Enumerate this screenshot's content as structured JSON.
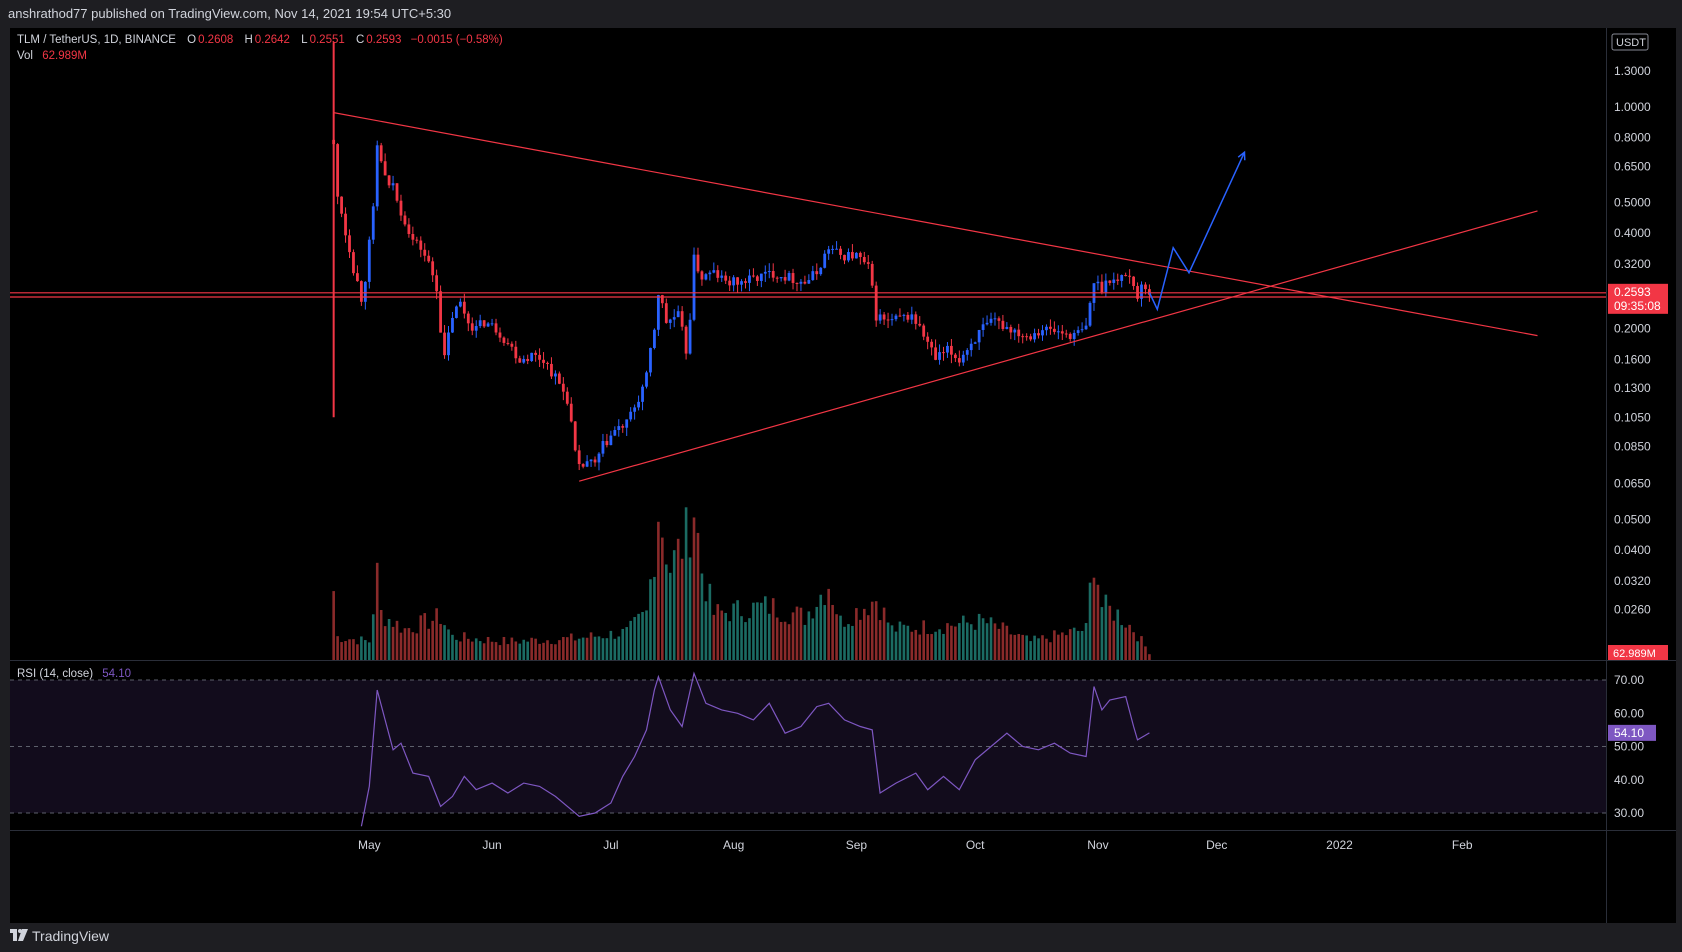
{
  "header": {
    "published": "anshrathod77 published on TradingView.com, Nov 14, 2021 19:54 UTC+5:30"
  },
  "legend": {
    "symbol": "TLM / TetherUS, 1D, BINANCE",
    "o_label": "O",
    "o": "0.2608",
    "h_label": "H",
    "h": "0.2642",
    "l_label": "L",
    "l": "0.2551",
    "c_label": "C",
    "c": "0.2593",
    "change": "−0.0015 (−0.58%)",
    "vol_label": "Vol",
    "vol": "62.989M",
    "rsi_label": "RSI (14, close)",
    "rsi": "54.10"
  },
  "footer": {
    "brand": "TradingView"
  },
  "colors": {
    "up": "#2962ff",
    "down": "#f23645",
    "vol_up": "#1b6b63",
    "vol_down": "#8a2a2a",
    "rsi": "#7e57c2",
    "trend": "#f23645",
    "projection": "#2962ff"
  },
  "chart_data": [
    {
      "type": "candlestick",
      "symbol": "TLM / TetherUS",
      "interval": "1D",
      "exchange": "BINANCE",
      "scale": "log",
      "currency": "USDT",
      "x_ticks": [
        "May",
        "Jun",
        "Jul",
        "Aug",
        "Sep",
        "Oct",
        "Nov",
        "Dec",
        "2022",
        "Feb"
      ],
      "y_ticks": [
        1.3,
        1.0,
        0.8,
        0.65,
        0.5,
        0.4,
        0.32,
        0.26,
        0.2,
        0.16,
        0.13,
        0.105,
        0.085,
        0.065,
        0.05,
        0.04,
        0.032,
        0.026
      ],
      "y_tick_labels": [
        "1.3000",
        "1.0000",
        "0.8000",
        "0.6500",
        "0.5000",
        "0.4000",
        "0.3200",
        "0.2600",
        "0.2000",
        "0.1600",
        "0.1300",
        "0.1050",
        "0.0850",
        "0.0650",
        "0.0500",
        "0.0400",
        "0.0320",
        "0.0260"
      ],
      "last_price": "0.2593",
      "countdown": "09:35:08",
      "currency_label": "USDT",
      "price_path": [
        {
          "d": "2021-04-22",
          "v": 0.75
        },
        {
          "d": "2021-04-23",
          "v": 0.52
        },
        {
          "d": "2021-04-24",
          "v": 0.47
        },
        {
          "d": "2021-04-25",
          "v": 0.4
        },
        {
          "d": "2021-04-26",
          "v": 0.36
        },
        {
          "d": "2021-04-27",
          "v": 0.31
        },
        {
          "d": "2021-04-28",
          "v": 0.28
        },
        {
          "d": "2021-04-29",
          "v": 0.25
        },
        {
          "d": "2021-04-30",
          "v": 0.29
        },
        {
          "d": "2021-05-01",
          "v": 0.37
        },
        {
          "d": "2021-05-02",
          "v": 0.47
        },
        {
          "d": "2021-05-03",
          "v": 0.75
        },
        {
          "d": "2021-05-04",
          "v": 0.68
        },
        {
          "d": "2021-05-05",
          "v": 0.6
        },
        {
          "d": "2021-05-06",
          "v": 0.55
        },
        {
          "d": "2021-05-07",
          "v": 0.58
        },
        {
          "d": "2021-05-08",
          "v": 0.5
        },
        {
          "d": "2021-05-10",
          "v": 0.44
        },
        {
          "d": "2021-05-12",
          "v": 0.38
        },
        {
          "d": "2021-05-14",
          "v": 0.36
        },
        {
          "d": "2021-05-16",
          "v": 0.32
        },
        {
          "d": "2021-05-18",
          "v": 0.27
        },
        {
          "d": "2021-05-19",
          "v": 0.2
        },
        {
          "d": "2021-05-20",
          "v": 0.16
        },
        {
          "d": "2021-05-22",
          "v": 0.22
        },
        {
          "d": "2021-05-24",
          "v": 0.24
        },
        {
          "d": "2021-05-26",
          "v": 0.21
        },
        {
          "d": "2021-05-28",
          "v": 0.2
        },
        {
          "d": "2021-05-30",
          "v": 0.21
        },
        {
          "d": "2021-06-02",
          "v": 0.2
        },
        {
          "d": "2021-06-05",
          "v": 0.18
        },
        {
          "d": "2021-06-08",
          "v": 0.16
        },
        {
          "d": "2021-06-11",
          "v": 0.165
        },
        {
          "d": "2021-06-14",
          "v": 0.16
        },
        {
          "d": "2021-06-17",
          "v": 0.14
        },
        {
          "d": "2021-06-20",
          "v": 0.12
        },
        {
          "d": "2021-06-22",
          "v": 0.08
        },
        {
          "d": "2021-06-23",
          "v": 0.072
        },
        {
          "d": "2021-06-25",
          "v": 0.076
        },
        {
          "d": "2021-06-27",
          "v": 0.074
        },
        {
          "d": "2021-06-29",
          "v": 0.085
        },
        {
          "d": "2021-07-02",
          "v": 0.095
        },
        {
          "d": "2021-07-05",
          "v": 0.1
        },
        {
          "d": "2021-07-08",
          "v": 0.12
        },
        {
          "d": "2021-07-10",
          "v": 0.14
        },
        {
          "d": "2021-07-12",
          "v": 0.2
        },
        {
          "d": "2021-07-13",
          "v": 0.26
        },
        {
          "d": "2021-07-15",
          "v": 0.21
        },
        {
          "d": "2021-07-18",
          "v": 0.22
        },
        {
          "d": "2021-07-20",
          "v": 0.17
        },
        {
          "d": "2021-07-21",
          "v": 0.22
        },
        {
          "d": "2021-07-22",
          "v": 0.33
        },
        {
          "d": "2021-07-24",
          "v": 0.29
        },
        {
          "d": "2021-07-27",
          "v": 0.3
        },
        {
          "d": "2021-07-30",
          "v": 0.28
        },
        {
          "d": "2021-08-03",
          "v": 0.28
        },
        {
          "d": "2021-08-07",
          "v": 0.29
        },
        {
          "d": "2021-08-11",
          "v": 0.3
        },
        {
          "d": "2021-08-15",
          "v": 0.29
        },
        {
          "d": "2021-08-19",
          "v": 0.28
        },
        {
          "d": "2021-08-22",
          "v": 0.3
        },
        {
          "d": "2021-08-25",
          "v": 0.36
        },
        {
          "d": "2021-08-28",
          "v": 0.34
        },
        {
          "d": "2021-09-01",
          "v": 0.34
        },
        {
          "d": "2021-09-04",
          "v": 0.31
        },
        {
          "d": "2021-09-06",
          "v": 0.22
        },
        {
          "d": "2021-09-09",
          "v": 0.21
        },
        {
          "d": "2021-09-12",
          "v": 0.215
        },
        {
          "d": "2021-09-15",
          "v": 0.22
        },
        {
          "d": "2021-09-18",
          "v": 0.19
        },
        {
          "d": "2021-09-21",
          "v": 0.16
        },
        {
          "d": "2021-09-24",
          "v": 0.17
        },
        {
          "d": "2021-09-27",
          "v": 0.16
        },
        {
          "d": "2021-09-30",
          "v": 0.18
        },
        {
          "d": "2021-10-03",
          "v": 0.2
        },
        {
          "d": "2021-10-06",
          "v": 0.21
        },
        {
          "d": "2021-10-10",
          "v": 0.2
        },
        {
          "d": "2021-10-14",
          "v": 0.19
        },
        {
          "d": "2021-10-18",
          "v": 0.2
        },
        {
          "d": "2021-10-22",
          "v": 0.195
        },
        {
          "d": "2021-10-26",
          "v": 0.19
        },
        {
          "d": "2021-10-29",
          "v": 0.2
        },
        {
          "d": "2021-10-31",
          "v": 0.28
        },
        {
          "d": "2021-11-02",
          "v": 0.27
        },
        {
          "d": "2021-11-04",
          "v": 0.29
        },
        {
          "d": "2021-11-06",
          "v": 0.28
        },
        {
          "d": "2021-11-08",
          "v": 0.3
        },
        {
          "d": "2021-11-10",
          "v": 0.28
        },
        {
          "d": "2021-11-11",
          "v": 0.25
        },
        {
          "d": "2021-11-12",
          "v": 0.27
        },
        {
          "d": "2021-11-14",
          "v": 0.2593
        }
      ],
      "annotations": {
        "upper_trendline": [
          {
            "d": "2021-04-22",
            "v": 0.96
          },
          {
            "d": "2022-02-20",
            "v": 0.19
          }
        ],
        "lower_trendline": [
          {
            "d": "2021-06-23",
            "v": 0.066
          },
          {
            "d": "2022-02-20",
            "v": 0.47
          }
        ],
        "horizontal_levels": [
          0.2593,
          0.2515
        ],
        "projection_path": [
          {
            "d": "2021-11-14",
            "v": 0.26
          },
          {
            "d": "2021-11-16",
            "v": 0.23
          },
          {
            "d": "2021-11-20",
            "v": 0.36
          },
          {
            "d": "2021-11-24",
            "v": 0.3
          },
          {
            "d": "2021-12-08",
            "v": 0.72
          }
        ]
      }
    },
    {
      "type": "bar",
      "series": "Volume",
      "last_value": "62.989M",
      "relative_volume_path": [
        {
          "d": "2021-04-22",
          "v": 0.45
        },
        {
          "d": "2021-04-23",
          "v": 0.15
        },
        {
          "d": "2021-05-01",
          "v": 0.12
        },
        {
          "d": "2021-05-03",
          "v": 0.55
        },
        {
          "d": "2021-05-04",
          "v": 0.3
        },
        {
          "d": "2021-05-10",
          "v": 0.2
        },
        {
          "d": "2021-05-19",
          "v": 0.28
        },
        {
          "d": "2021-05-22",
          "v": 0.15
        },
        {
          "d": "2021-06-05",
          "v": 0.12
        },
        {
          "d": "2021-06-22",
          "v": 0.14
        },
        {
          "d": "2021-07-05",
          "v": 0.18
        },
        {
          "d": "2021-07-10",
          "v": 0.3
        },
        {
          "d": "2021-07-12",
          "v": 0.72
        },
        {
          "d": "2021-07-13",
          "v": 0.99
        },
        {
          "d": "2021-07-16",
          "v": 0.6
        },
        {
          "d": "2021-07-20",
          "v": 0.8
        },
        {
          "d": "2021-07-22",
          "v": 1.0
        },
        {
          "d": "2021-07-24",
          "v": 0.58
        },
        {
          "d": "2021-07-27",
          "v": 0.3
        },
        {
          "d": "2021-08-10",
          "v": 0.35
        },
        {
          "d": "2021-08-19",
          "v": 0.28
        },
        {
          "d": "2021-08-25",
          "v": 0.5
        },
        {
          "d": "2021-08-28",
          "v": 0.25
        },
        {
          "d": "2021-09-06",
          "v": 0.4
        },
        {
          "d": "2021-09-10",
          "v": 0.2
        },
        {
          "d": "2021-09-21",
          "v": 0.22
        },
        {
          "d": "2021-10-03",
          "v": 0.25
        },
        {
          "d": "2021-10-15",
          "v": 0.12
        },
        {
          "d": "2021-10-29",
          "v": 0.2
        },
        {
          "d": "2021-10-31",
          "v": 0.7
        },
        {
          "d": "2021-11-02",
          "v": 0.35
        },
        {
          "d": "2021-11-06",
          "v": 0.3
        },
        {
          "d": "2021-11-10",
          "v": 0.2
        },
        {
          "d": "2021-11-14",
          "v": 0.05
        }
      ]
    },
    {
      "type": "line",
      "series": "RSI (14, close)",
      "y_ticks": [
        70,
        60,
        50,
        40,
        30
      ],
      "y_tick_labels": [
        "70.00",
        "60.00",
        "50.00",
        "40.00",
        "30.00"
      ],
      "bands": [
        70,
        50,
        30
      ],
      "last_value": "54.10",
      "path": [
        {
          "d": "2021-04-29",
          "v": 26
        },
        {
          "d": "2021-05-01",
          "v": 38
        },
        {
          "d": "2021-05-03",
          "v": 67
        },
        {
          "d": "2021-05-05",
          "v": 58
        },
        {
          "d": "2021-05-07",
          "v": 49
        },
        {
          "d": "2021-05-09",
          "v": 51
        },
        {
          "d": "2021-05-12",
          "v": 42
        },
        {
          "d": "2021-05-16",
          "v": 41
        },
        {
          "d": "2021-05-19",
          "v": 32
        },
        {
          "d": "2021-05-22",
          "v": 35
        },
        {
          "d": "2021-05-25",
          "v": 41
        },
        {
          "d": "2021-05-28",
          "v": 37
        },
        {
          "d": "2021-06-01",
          "v": 39
        },
        {
          "d": "2021-06-05",
          "v": 36
        },
        {
          "d": "2021-06-09",
          "v": 39
        },
        {
          "d": "2021-06-13",
          "v": 38
        },
        {
          "d": "2021-06-17",
          "v": 35
        },
        {
          "d": "2021-06-21",
          "v": 31
        },
        {
          "d": "2021-06-23",
          "v": 29
        },
        {
          "d": "2021-06-27",
          "v": 30
        },
        {
          "d": "2021-07-01",
          "v": 33
        },
        {
          "d": "2021-07-04",
          "v": 41
        },
        {
          "d": "2021-07-07",
          "v": 47
        },
        {
          "d": "2021-07-10",
          "v": 55
        },
        {
          "d": "2021-07-12",
          "v": 67
        },
        {
          "d": "2021-07-13",
          "v": 71
        },
        {
          "d": "2021-07-16",
          "v": 61
        },
        {
          "d": "2021-07-19",
          "v": 56
        },
        {
          "d": "2021-07-22",
          "v": 72
        },
        {
          "d": "2021-07-25",
          "v": 63
        },
        {
          "d": "2021-07-29",
          "v": 61
        },
        {
          "d": "2021-08-02",
          "v": 60
        },
        {
          "d": "2021-08-06",
          "v": 58
        },
        {
          "d": "2021-08-10",
          "v": 63
        },
        {
          "d": "2021-08-14",
          "v": 54
        },
        {
          "d": "2021-08-18",
          "v": 56
        },
        {
          "d": "2021-08-22",
          "v": 62
        },
        {
          "d": "2021-08-25",
          "v": 63
        },
        {
          "d": "2021-08-29",
          "v": 58
        },
        {
          "d": "2021-09-02",
          "v": 56
        },
        {
          "d": "2021-09-05",
          "v": 55
        },
        {
          "d": "2021-09-07",
          "v": 36
        },
        {
          "d": "2021-09-11",
          "v": 39
        },
        {
          "d": "2021-09-16",
          "v": 42
        },
        {
          "d": "2021-09-19",
          "v": 37
        },
        {
          "d": "2021-09-23",
          "v": 41
        },
        {
          "d": "2021-09-27",
          "v": 37
        },
        {
          "d": "2021-10-01",
          "v": 46
        },
        {
          "d": "2021-10-05",
          "v": 50
        },
        {
          "d": "2021-10-09",
          "v": 54
        },
        {
          "d": "2021-10-13",
          "v": 50
        },
        {
          "d": "2021-10-17",
          "v": 49
        },
        {
          "d": "2021-10-21",
          "v": 51
        },
        {
          "d": "2021-10-25",
          "v": 48
        },
        {
          "d": "2021-10-29",
          "v": 47
        },
        {
          "d": "2021-10-31",
          "v": 68
        },
        {
          "d": "2021-11-02",
          "v": 61
        },
        {
          "d": "2021-11-04",
          "v": 64
        },
        {
          "d": "2021-11-08",
          "v": 65
        },
        {
          "d": "2021-11-10",
          "v": 56
        },
        {
          "d": "2021-11-11",
          "v": 52
        },
        {
          "d": "2021-11-14",
          "v": 54.1
        }
      ]
    }
  ]
}
